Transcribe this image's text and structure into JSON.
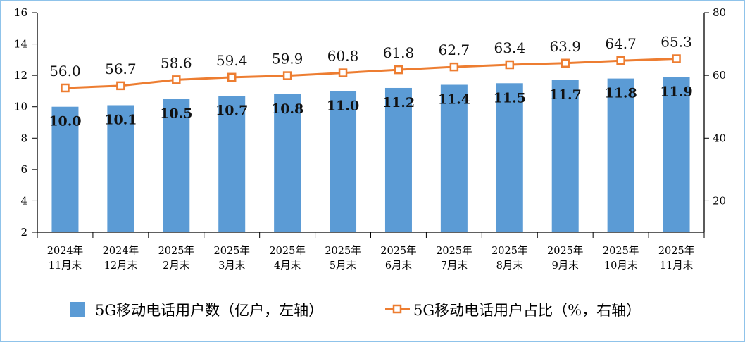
{
  "chart_data": {
    "type": "bar+line",
    "categories": [
      "2024年\n11月末",
      "2024年\n12月末",
      "2025年\n2月末",
      "2025年\n3月末",
      "2025年\n4月末",
      "2025年\n5月末",
      "2025年\n6月末",
      "2025年\n7月末",
      "2025年\n8月末",
      "2025年\n9月末",
      "2025年\n10月末",
      "2025年\n11月末"
    ],
    "series": [
      {
        "name": "5G移动电话用户数（亿户，左轴）",
        "type": "bar",
        "axis": "left",
        "color": "#5b9bd5",
        "values": [
          10.0,
          10.1,
          10.5,
          10.7,
          10.8,
          11.0,
          11.2,
          11.4,
          11.5,
          11.7,
          11.8,
          11.9
        ],
        "labels": [
          "10.0",
          "10.1",
          "10.5",
          "10.7",
          "10.8",
          "11.0",
          "11.2",
          "11.4",
          "11.5",
          "11.7",
          "11.8",
          "11.9"
        ]
      },
      {
        "name": "5G移动电话用户占比（%，右轴）",
        "type": "line",
        "axis": "right",
        "color": "#ed7d31",
        "values": [
          56.0,
          56.7,
          58.6,
          59.4,
          59.9,
          60.8,
          61.8,
          62.7,
          63.4,
          63.9,
          64.7,
          65.3
        ],
        "labels": [
          "56.0",
          "56.7",
          "58.6",
          "59.4",
          "59.9",
          "60.8",
          "61.8",
          "62.7",
          "63.4",
          "63.9",
          "64.7",
          "65.3"
        ]
      }
    ],
    "left_axis": {
      "ylim": [
        2,
        16
      ],
      "ticks": [
        "2",
        "4",
        "6",
        "8",
        "10",
        "12",
        "14",
        "16"
      ]
    },
    "right_axis": {
      "ylim": [
        10,
        80
      ],
      "ticks": [
        "20",
        "40",
        "60",
        "80"
      ]
    },
    "grid": false,
    "legend": "bottom"
  }
}
